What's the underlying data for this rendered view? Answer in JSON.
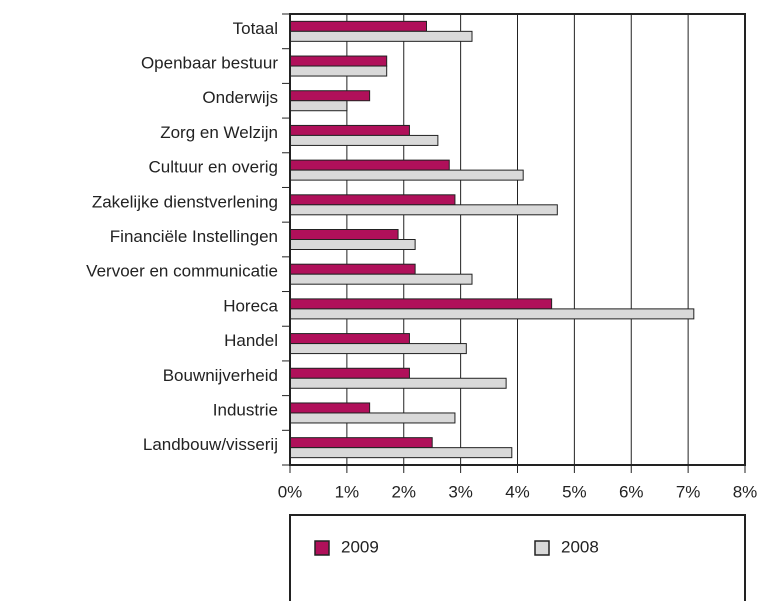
{
  "chart_data": {
    "type": "hbar",
    "categories": [
      "Totaal",
      "Openbaar bestuur",
      "Onderwijs",
      "Zorg en Welzijn",
      "Cultuur en overig",
      "Zakelijke dienstverlening",
      "Financiële Instellingen",
      "Vervoer en communicatie",
      "Horeca",
      "Handel",
      "Bouwnijverheid",
      "Industrie",
      "Landbouw/visserij"
    ],
    "series": [
      {
        "name": "2009",
        "color": "#b0105a",
        "values": [
          2.4,
          1.7,
          1.4,
          2.1,
          2.8,
          2.9,
          1.9,
          2.2,
          4.6,
          2.1,
          2.1,
          1.4,
          2.5
        ]
      },
      {
        "name": "2008",
        "color": "#d9d9d9",
        "values": [
          3.2,
          1.7,
          1.0,
          2.6,
          4.1,
          4.7,
          2.2,
          3.2,
          7.1,
          3.1,
          3.8,
          2.9,
          3.9
        ]
      }
    ],
    "xlim": [
      0,
      8
    ],
    "xticks": [
      {
        "value": 0,
        "label": "0%"
      },
      {
        "value": 1,
        "label": "1%"
      },
      {
        "value": 2,
        "label": "2%"
      },
      {
        "value": 3,
        "label": "3%"
      },
      {
        "value": 4,
        "label": "4%"
      },
      {
        "value": 5,
        "label": "5%"
      },
      {
        "value": 6,
        "label": "6%"
      },
      {
        "value": 7,
        "label": "7%"
      },
      {
        "value": 8,
        "label": "8%"
      }
    ],
    "grid": true
  }
}
